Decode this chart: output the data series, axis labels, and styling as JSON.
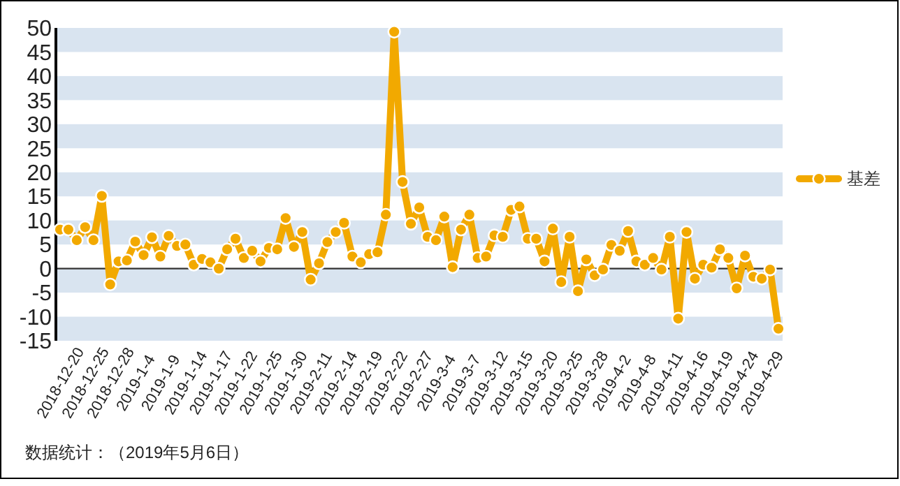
{
  "chart_data": {
    "type": "line",
    "categories": [
      "2018-12-20",
      null,
      null,
      "2018-12-25",
      null,
      null,
      "2018-12-28",
      null,
      null,
      "2019-1-4",
      null,
      null,
      "2019-1-9",
      null,
      null,
      "2019-1-14",
      null,
      null,
      "2019-1-17",
      null,
      null,
      "2019-1-22",
      null,
      null,
      "2019-1-25",
      null,
      null,
      "2019-1-30",
      null,
      null,
      "2019-2-11",
      null,
      null,
      "2019-2-14",
      null,
      null,
      "2019-2-19",
      null,
      null,
      "2019-2-22",
      null,
      null,
      "2019-2-27",
      null,
      null,
      "2019-3-4",
      null,
      null,
      "2019-3-7",
      null,
      null,
      "2019-3-12",
      null,
      null,
      "2019-3-15",
      null,
      null,
      "2019-3-20",
      null,
      null,
      "2019-3-25",
      null,
      null,
      "2019-3-28",
      null,
      null,
      "2019-4-2",
      null,
      null,
      "2019-4-8",
      null,
      null,
      "2019-4-11",
      null,
      null,
      "2019-4-16",
      null,
      null,
      "2019-4-19",
      null,
      null,
      "2019-4-24",
      null,
      null,
      "2019-4-29",
      null,
      null
    ],
    "series": [
      {
        "name": "基差",
        "color": "#f2a900",
        "values": [
          8.1,
          8.1,
          5.9,
          8.6,
          5.9,
          15.1,
          -3.3,
          1.5,
          1.7,
          5.6,
          2.8,
          6.5,
          2.5,
          6.8,
          4.7,
          5.0,
          0.8,
          2.0,
          1.3,
          0,
          4.0,
          6.2,
          2.2,
          3.7,
          1.5,
          4.3,
          4.0,
          10.5,
          4.5,
          7.6,
          -2.3,
          1.1,
          5.5,
          7.6,
          9.5,
          2.5,
          1.3,
          3.0,
          3.4,
          11.2,
          49.2,
          18.0,
          9.3,
          12.7,
          6.6,
          5.9,
          10.8,
          0.3,
          8.1,
          11.2,
          2.2,
          2.5,
          6.9,
          6.6,
          12.2,
          12.9,
          6.2,
          6.2,
          1.5,
          8.3,
          -2.8,
          6.6,
          -4.7,
          1.9,
          -1.4,
          -0.2,
          4.9,
          3.7,
          7.8,
          1.5,
          0.8,
          2.2,
          -0.2,
          6.6,
          -10.4,
          7.6,
          -2.1,
          0.8,
          0.2,
          4.0,
          2.2,
          -4.1,
          2.7,
          -1.7,
          -2.1,
          -0.2,
          -12.5
        ]
      }
    ],
    "ylim": [
      -15,
      50
    ],
    "yticks": [
      -15,
      -10,
      -5,
      0,
      5,
      10,
      15,
      20,
      25,
      30,
      35,
      40,
      45,
      50
    ],
    "grid": "y",
    "legend": "right",
    "marker": "circle",
    "line_style": "solid",
    "annotations": [
      "数据统计：（2019年5月6日）"
    ]
  }
}
